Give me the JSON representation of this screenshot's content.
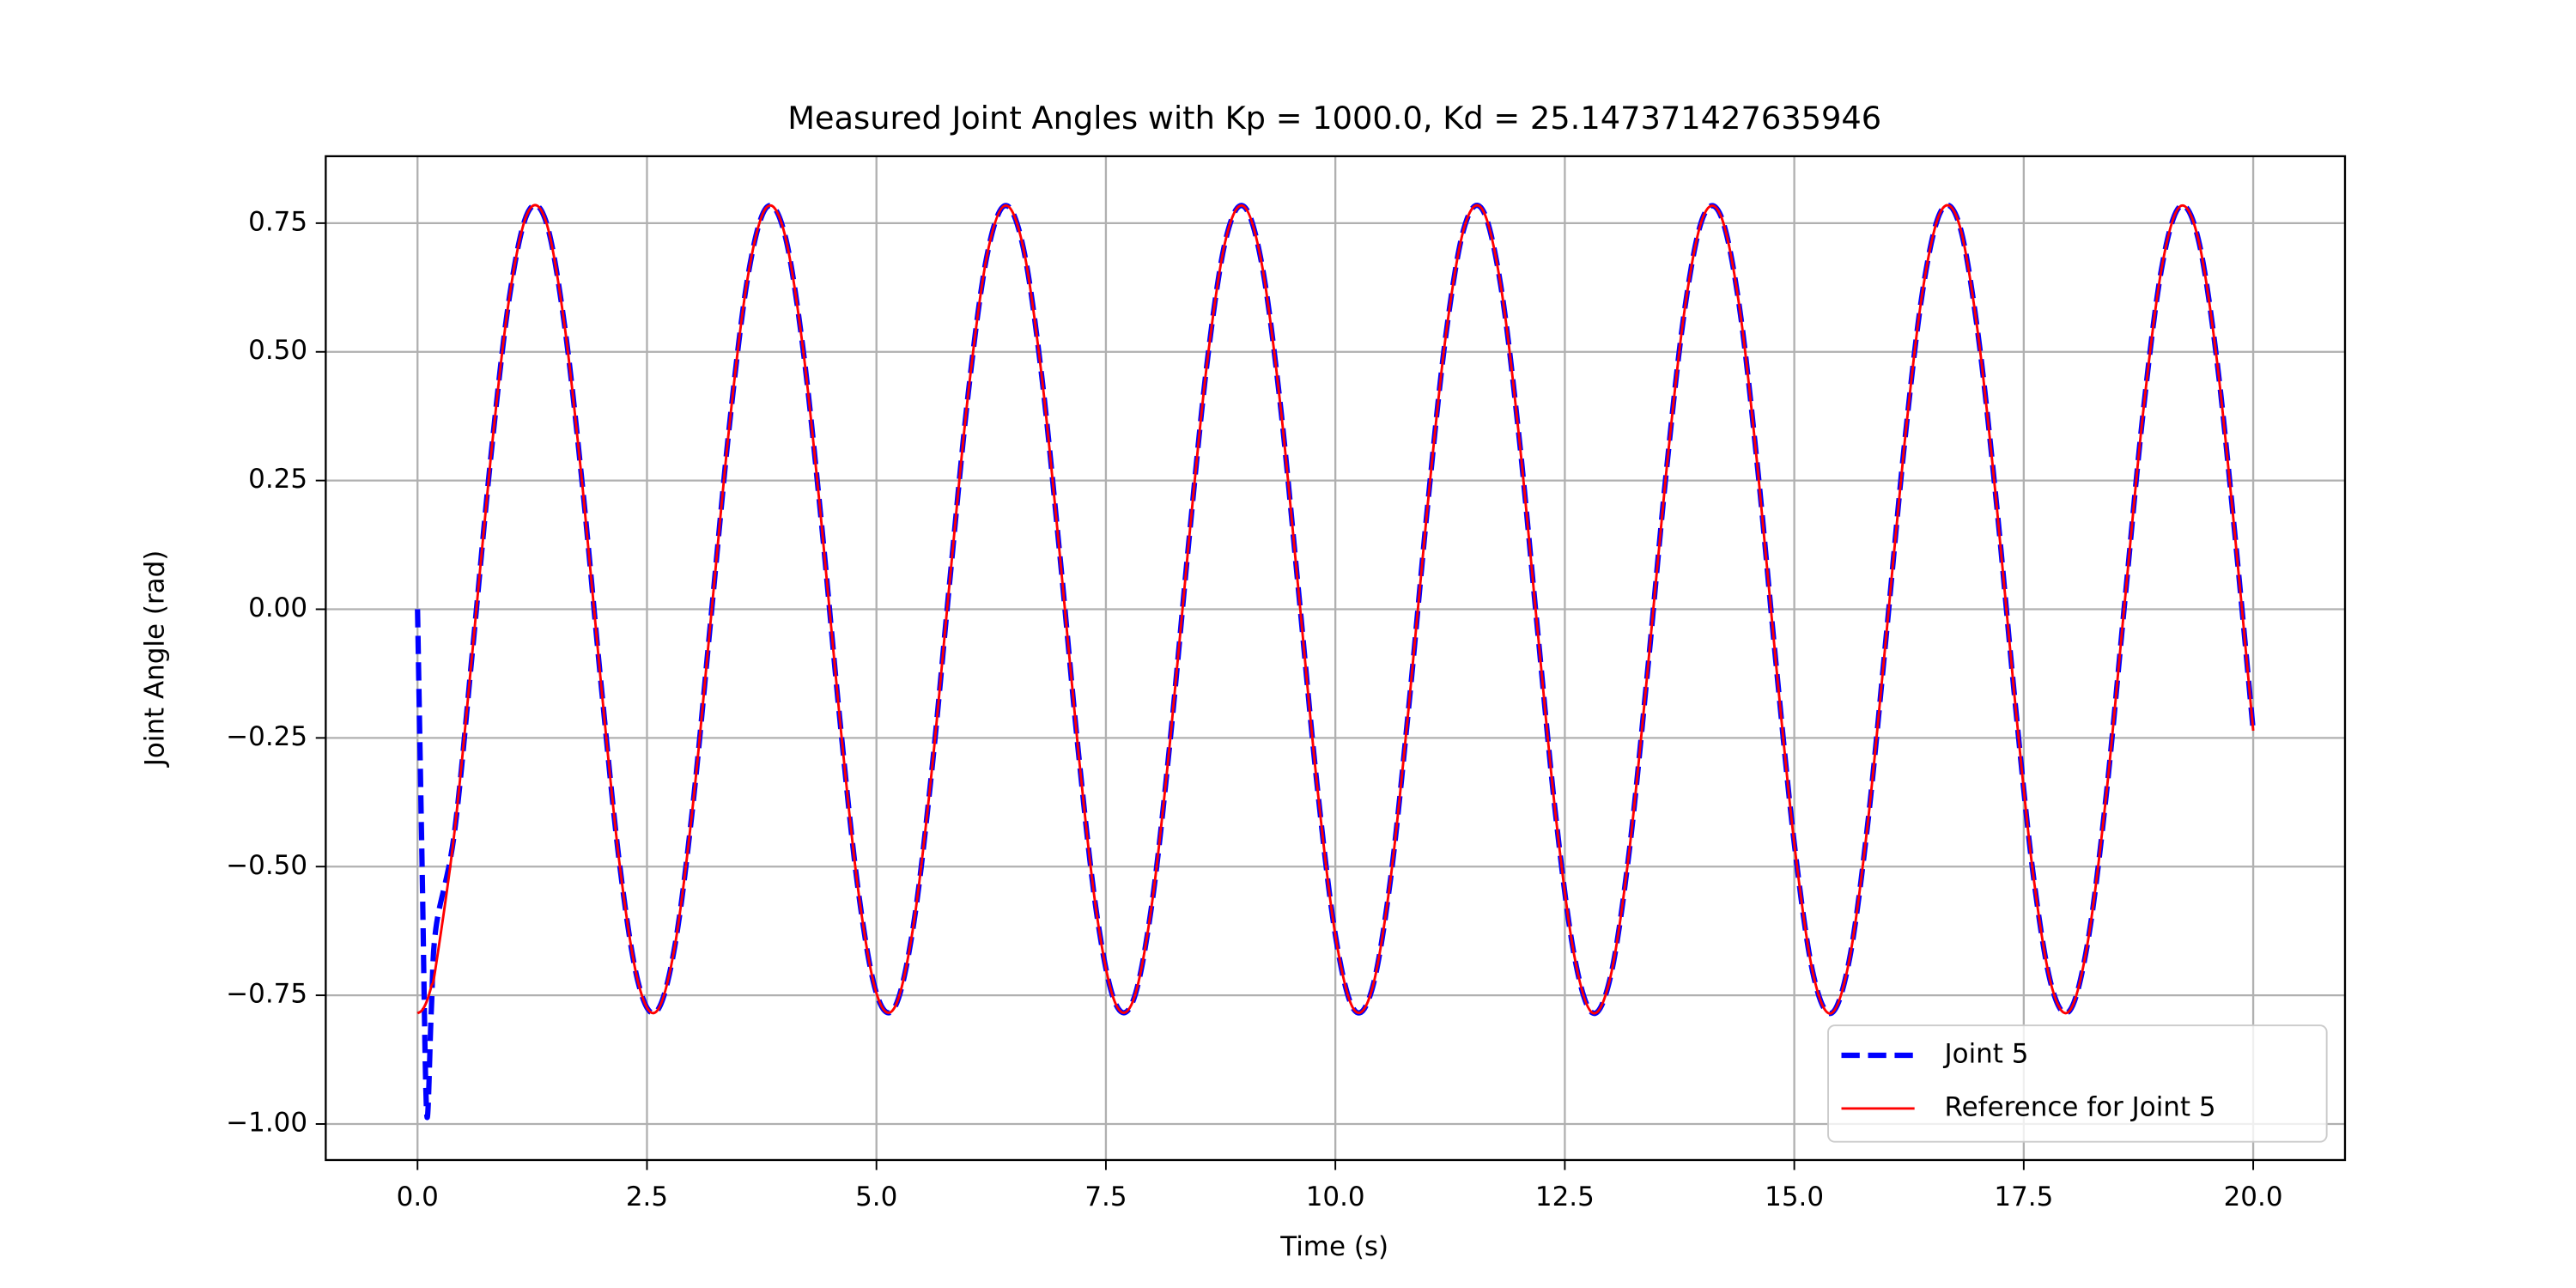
{
  "chart_data": {
    "type": "line",
    "title": "Measured Joint Angles with Kp = 1000.0, Kd = 25.147371427635946",
    "xlabel": "Time (s)",
    "ylabel": "Joint Angle (rad)",
    "x": [
      0,
      0.05,
      0.1,
      0.15,
      0.2,
      0.4,
      0.6,
      0.8,
      1.0,
      1.2,
      1.4,
      1.6,
      1.8,
      2.0,
      2.2,
      2.4,
      2.6,
      2.8,
      3.0,
      3.2,
      3.4,
      3.6,
      3.8,
      4.0,
      4.2,
      4.4,
      4.6,
      4.8,
      5.0,
      5.2,
      5.4,
      5.6,
      5.8,
      6.0,
      6.2,
      6.4,
      6.6,
      6.8,
      7.0,
      7.2,
      7.4,
      7.6,
      7.8,
      8.0,
      8.2,
      8.4,
      8.6,
      8.8,
      9.0,
      9.2,
      9.4,
      9.6,
      9.8,
      10.0,
      10.2,
      10.4,
      10.6,
      10.8,
      11.0,
      11.2,
      11.4,
      11.6,
      11.8,
      12.0,
      12.2,
      12.4,
      12.6,
      12.8,
      13.0,
      13.2,
      13.4,
      13.6,
      13.8,
      14.0,
      14.2,
      14.4,
      14.6,
      14.8,
      15.0,
      15.2,
      15.4,
      15.6,
      15.8,
      16.0,
      16.2,
      16.4,
      16.6,
      16.8,
      17.0,
      17.2,
      17.4,
      17.6,
      17.8,
      18.0,
      18.2,
      18.4,
      18.6,
      18.8,
      19.0,
      19.2,
      19.4,
      19.6,
      19.8,
      20.0
    ],
    "series": [
      {
        "name": "Joint 5",
        "color": "#0000ff",
        "linestyle": "dashed",
        "values": [
          0,
          -0.5,
          -0.98,
          -0.78,
          -0.62,
          -0.437,
          -0.079,
          0.298,
          0.605,
          0.77,
          0.753,
          0.554,
          0.234,
          -0.146,
          -0.493,
          -0.722,
          -0.782,
          -0.658,
          -0.381,
          -0.011,
          0.36,
          0.647,
          0.78,
          0.729,
          0.506,
          0.169,
          -0.212,
          -0.544,
          -0.746,
          -0.773,
          -0.618,
          -0.319,
          0.057,
          0.419,
          0.683,
          0.784,
          0.702,
          0.454,
          0.102,
          -0.277,
          -0.592,
          -0.764,
          -0.759,
          -0.574,
          -0.255,
          0.125,
          0.475,
          0.714,
          0.783,
          0.669,
          0.398,
          0.033,
          -0.34,
          -0.633,
          -0.777,
          -0.738,
          -0.526,
          -0.189,
          0.192,
          0.527,
          0.739,
          0.777,
          0.631,
          0.337,
          -0.035,
          -0.4,
          -0.67,
          -0.784,
          -0.712,
          -0.473,
          -0.123,
          0.257,
          0.575,
          0.759,
          0.764,
          0.59,
          0.275,
          -0.104,
          -0.455,
          -0.704,
          -0.785,
          -0.681,
          -0.417,
          -0.055,
          0.32,
          0.62,
          0.774,
          0.746,
          0.537,
          0.211,
          -0.17,
          -0.511,
          -0.73,
          -0.78,
          -0.644,
          -0.359,
          0.013,
          0.381,
          0.66,
          0.782,
          0.72,
          0.49,
          0.146,
          -0.236
        ]
      },
      {
        "name": "Reference for Joint 5",
        "color": "#ff0000",
        "linestyle": "solid",
        "values": [
          -0.785,
          -0.779,
          -0.762,
          -0.733,
          -0.693,
          -0.437,
          -0.079,
          0.298,
          0.605,
          0.77,
          0.753,
          0.554,
          0.234,
          -0.146,
          -0.493,
          -0.722,
          -0.782,
          -0.658,
          -0.381,
          -0.011,
          0.36,
          0.647,
          0.78,
          0.729,
          0.506,
          0.169,
          -0.212,
          -0.544,
          -0.746,
          -0.773,
          -0.618,
          -0.319,
          0.057,
          0.419,
          0.683,
          0.784,
          0.702,
          0.454,
          0.102,
          -0.277,
          -0.592,
          -0.764,
          -0.759,
          -0.574,
          -0.255,
          0.125,
          0.475,
          0.714,
          0.783,
          0.669,
          0.398,
          0.033,
          -0.34,
          -0.633,
          -0.777,
          -0.738,
          -0.526,
          -0.189,
          0.192,
          0.527,
          0.739,
          0.777,
          0.631,
          0.337,
          -0.035,
          -0.4,
          -0.67,
          -0.784,
          -0.712,
          -0.473,
          -0.123,
          0.257,
          0.575,
          0.759,
          0.764,
          0.59,
          0.275,
          -0.104,
          -0.455,
          -0.704,
          -0.785,
          -0.681,
          -0.417,
          -0.055,
          0.32,
          0.62,
          0.774,
          0.746,
          0.537,
          0.211,
          -0.17,
          -0.511,
          -0.73,
          -0.78,
          -0.644,
          -0.359,
          0.013,
          0.381,
          0.66,
          0.782,
          0.72,
          0.49,
          0.146,
          -0.236
        ]
      }
    ],
    "xlim": [
      -1.0,
      21.0
    ],
    "ylim": [
      -1.07,
      0.88
    ],
    "xticks": [
      {
        "value": 0,
        "label": "0.0"
      },
      2.5,
      {
        "value": 5,
        "label": "5.0"
      },
      7.5,
      {
        "value": 10,
        "label": "10.0"
      },
      12.5,
      {
        "value": 15,
        "label": "15.0"
      },
      17.5,
      {
        "value": 20,
        "label": "20.0"
      }
    ],
    "yticks": [
      {
        "value": -1,
        "label": "−1.00"
      },
      {
        "value": -0.75,
        "label": "−0.75"
      },
      {
        "value": -0.5,
        "label": "−0.50"
      },
      {
        "value": -0.25,
        "label": "−0.25"
      },
      {
        "value": 0,
        "label": "0.00"
      },
      0.25,
      {
        "value": 0.5,
        "label": "0.50"
      },
      0.75
    ],
    "grid": true,
    "legend": "lower right"
  }
}
